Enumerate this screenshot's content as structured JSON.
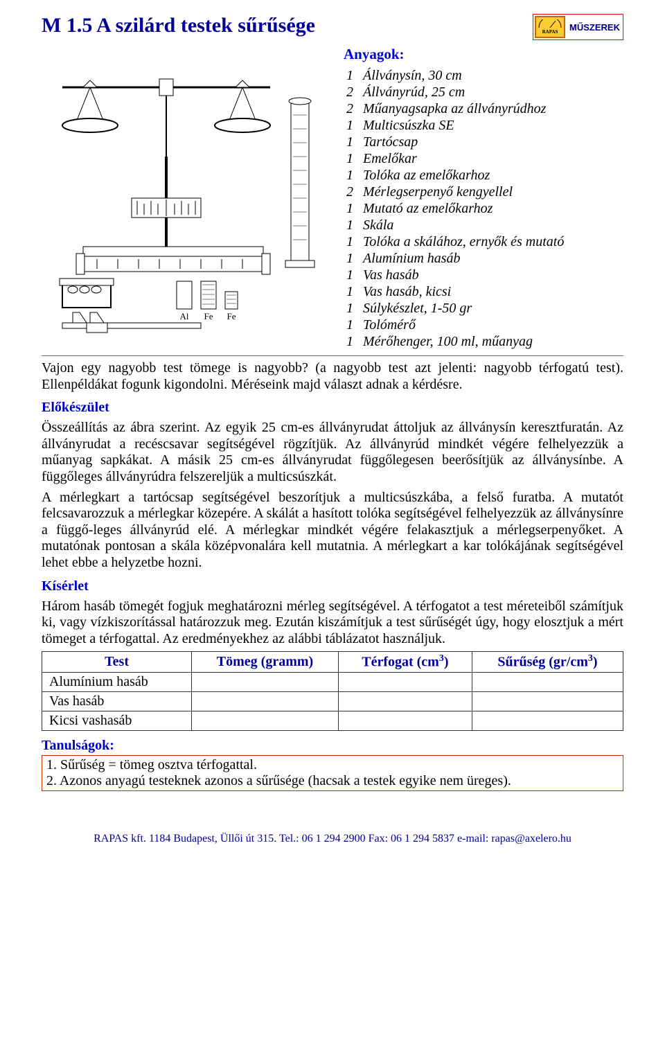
{
  "colors": {
    "title": "#000099",
    "heading": "#0000cc",
    "text": "#000000",
    "logo_border": "#ff0000",
    "logo_fill": "#ffcc33",
    "logo_edge": "#cc6600",
    "lessons_border": "#cc3300",
    "table_border": "#333333",
    "background": "#ffffff"
  },
  "fonts": {
    "body_family": "Times New Roman",
    "body_size_pt": 12,
    "title_size_pt": 18
  },
  "title": "M 1.5 A szilárd testek sűrűsége",
  "logo": {
    "brand": "RAPAS",
    "tag": "MŰSZEREK"
  },
  "materials": {
    "heading": "Anyagok:",
    "items": [
      {
        "qty": "1",
        "desc": "Állványsín, 30 cm"
      },
      {
        "qty": "2",
        "desc": "Állványrúd, 25 cm"
      },
      {
        "qty": "2",
        "desc": "Műanyagsapka az állványrúdhoz"
      },
      {
        "qty": "1",
        "desc": "Multicsúszka SE"
      },
      {
        "qty": "1",
        "desc": "Tartócsap"
      },
      {
        "qty": "1",
        "desc": "Emelőkar"
      },
      {
        "qty": "1",
        "desc": "Tolóka az emelőkarhoz"
      },
      {
        "qty": "2",
        "desc": "Mérlegserpenyő kengyellel"
      },
      {
        "qty": "1",
        "desc": "Mutató az emelőkarhoz"
      },
      {
        "qty": "1",
        "desc": "Skála"
      },
      {
        "qty": "1",
        "desc": "Tolóka a skálához, ernyők és mutató"
      },
      {
        "qty": "1",
        "desc": "Alumínium hasáb"
      },
      {
        "qty": "1",
        "desc": "Vas hasáb"
      },
      {
        "qty": "1",
        "desc": "Vas hasáb, kicsi"
      },
      {
        "qty": "1",
        "desc": "Súlykészlet, 1-50 gr"
      },
      {
        "qty": "1",
        "desc": "Tolómérő"
      },
      {
        "qty": "1",
        "desc": "Mérőhenger, 100 ml, műanyag"
      }
    ]
  },
  "intro": "Vajon egy nagyobb test tömege is nagyobb? (a nagyobb test azt jelenti: nagyobb térfogatú test). Ellenpéldákat fogunk kigondolni. Méréseink majd választ adnak a kérdésre.",
  "prep": {
    "heading": "Előkészület",
    "p1": "Összeállítás az ábra szerint. Az egyik 25 cm-es állványrudat áttoljuk az állványsín keresztfuratán. Az állványrudat a recéscsavar segítségével rögzítjük. Az állványrúd mindkét végére felhelyezzük a műanyag sapkákat. A másik 25 cm-es állványrudat függőlegesen beerősítjük az állványsínbe. A függőleges állványrúdra felszereljük a multicsúszkát.",
    "p2": "A mérlegkart a tartócsap segítségével beszorítjuk a multicsúszkába, a felső furatba. A mutatót felcsavarozzuk a mérlegkar közepére. A skálát a hasított tolóka segítségével felhelyezzük az állványsínre a függő-leges állványrúd elé. A mérlegkar mindkét végére felakasztjuk a mérlegserpenyőket. A mutatónak pontosan a skála középvonalára kell mutatnia. A mérlegkart a kar tolókájának segítségével lehet ebbe a helyzetbe hozni."
  },
  "experiment": {
    "heading": "Kísérlet",
    "p": "Három hasáb tömegét fogjuk meghatározni mérleg segítségével. A térfogatot a test méreteiből számítjuk ki, vagy vízkiszorítással határozzuk meg. Ezután kiszámítjuk a test sűrűségét úgy, hogy elosztjuk a mért tömeget a térfogattal. Az eredményekhez az alábbi táblázatot használjuk."
  },
  "table": {
    "columns": [
      "Test",
      "Tömeg (gramm)",
      "Térfogat (cm³)",
      "Sűrűség (gr/cm³)"
    ],
    "rows": [
      "Alumínium hasáb",
      "Vas hasáb",
      "Kicsi vashasáb"
    ]
  },
  "lessons": {
    "heading": "Tanulságok:",
    "items": [
      "1. Sűrűség = tömeg osztva térfogattal.",
      "2. Azonos anyagú testeknek azonos a sűrűsége (hacsak a testek egyike nem üreges)."
    ]
  },
  "footer": "RAPAS kft. 1184 Budapest, Üllői út 315. Tel.: 06 1 294 2900 Fax: 06 1 294 5837 e-mail: rapas@axelero.hu",
  "apparatus_labels": {
    "al": "Al",
    "fe1": "Fe",
    "fe2": "Fe"
  }
}
